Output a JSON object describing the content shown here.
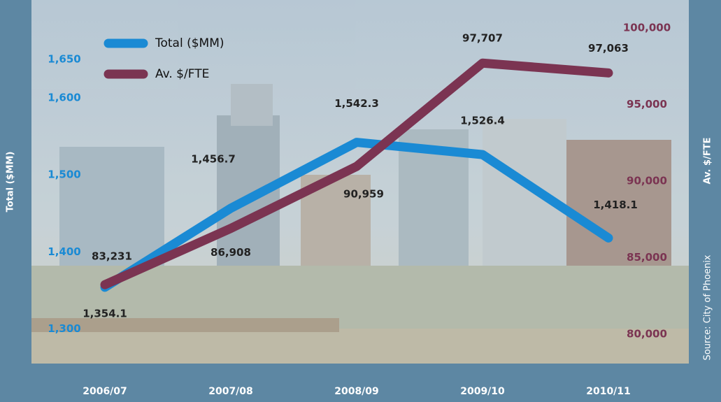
{
  "chart_data": {
    "type": "line",
    "categories": [
      "2006/07",
      "2007/08",
      "2008/09",
      "2009/10",
      "2010/11"
    ],
    "series": [
      {
        "name": "Total ($MM)",
        "color": "#1a8ad4",
        "values": [
          1354.1,
          1456.7,
          1542.3,
          1526.4,
          1418.1
        ],
        "value_labels": [
          "1,354.1",
          "1,456.7",
          "1,542.3",
          "1,526.4",
          "1,418.1"
        ]
      },
      {
        "name": "Av. $/FTE",
        "color": "#7b3452",
        "axis": "y2",
        "values": [
          83231,
          86908,
          90959,
          97707,
          97063
        ],
        "value_labels": [
          "83,231",
          "86,908",
          "90,959",
          "97,707",
          "97,063"
        ]
      }
    ],
    "ylabel": "Total ($MM)",
    "y2label": "Av. $/FTE",
    "ylim": [
      1255,
      1709
    ],
    "yticks": [
      {
        "value": 1300,
        "label": "1,300"
      },
      {
        "value": 1400,
        "label": "1,400"
      },
      {
        "value": 1500,
        "label": "1,500"
      },
      {
        "value": 1600,
        "label": "1,600"
      },
      {
        "value": 1650,
        "label": "1,650"
      }
    ],
    "y2lim": [
      78082,
      100913
    ],
    "y2ticks": [
      {
        "value": 80000,
        "label": "80,000"
      },
      {
        "value": 85000,
        "label": "85,000"
      },
      {
        "value": 90000,
        "label": "90,000"
      },
      {
        "value": 95000,
        "label": "95,000"
      },
      {
        "value": 100000,
        "label": "100,000"
      }
    ],
    "source": "Source: City of Phoenix",
    "legend": "top-left"
  }
}
